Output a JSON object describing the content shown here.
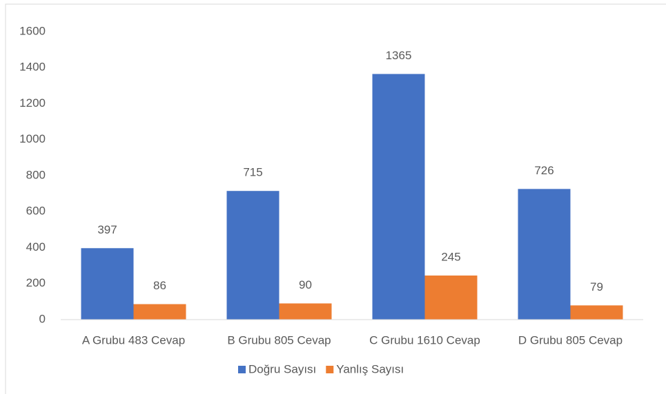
{
  "chart_data": {
    "type": "bar",
    "categories": [
      "A Grubu 483 Cevap",
      "B Grubu 805 Cevap",
      "C Grubu 1610 Cevap",
      "D Grubu 805 Cevap"
    ],
    "series": [
      {
        "name": "Doğru Sayısı",
        "color": "#4472c4",
        "values": [
          397,
          715,
          1365,
          726
        ]
      },
      {
        "name": "Yanlış Sayısı",
        "color": "#ed7d31",
        "values": [
          86,
          90,
          245,
          79
        ]
      }
    ],
    "ylim": [
      0,
      1600
    ],
    "yticks": [
      0,
      200,
      400,
      600,
      800,
      1000,
      1200,
      1400,
      1600
    ],
    "grid": false,
    "legend": "bottom"
  }
}
